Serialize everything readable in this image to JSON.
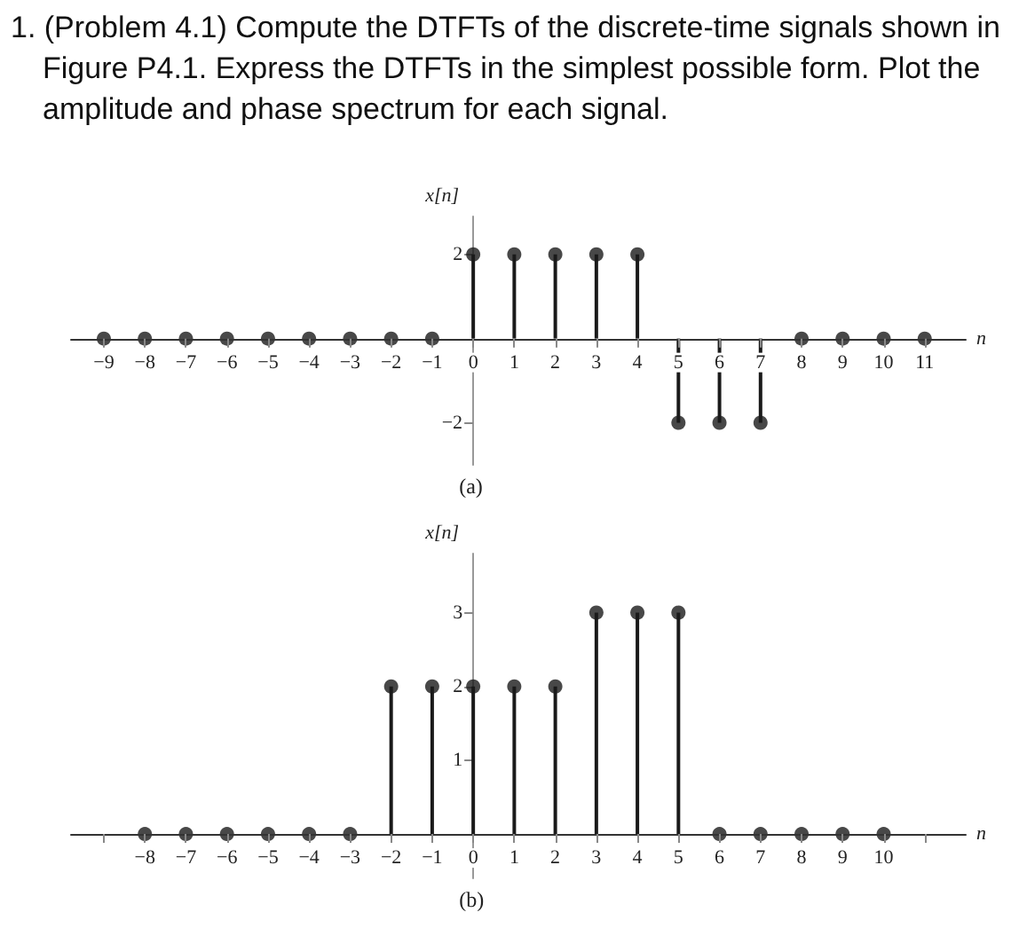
{
  "chart_data": [
    {
      "type": "lollipop",
      "title": "1. (Problem 4.1) Compute the DTFTs of the discrete-time signals shown in Figure P4.1. Express the DTFTs in the simplest possible form. Plot the amplitude and phase spectrum for each signal.",
      "xlabel": "n",
      "ylabel": "x[n]",
      "annotations": [
        "(a)"
      ],
      "color": "#1a1a1a",
      "marker": "circle",
      "grid": false,
      "x": [
        -9,
        -8,
        -7,
        -6,
        -5,
        -4,
        -3,
        -2,
        -1,
        0,
        1,
        2,
        3,
        4,
        5,
        6,
        7,
        8,
        9,
        10,
        11
      ],
      "values": [
        0,
        0,
        0,
        0,
        0,
        0,
        0,
        0,
        0,
        2,
        2,
        2,
        2,
        2,
        -2,
        -2,
        -2,
        0,
        0,
        0,
        0
      ],
      "xlim": [
        -9.8,
        12
      ],
      "xticks": [
        -9,
        -8,
        -7,
        -6,
        -5,
        -4,
        -3,
        -2,
        -1,
        0,
        1,
        2,
        3,
        4,
        5,
        6,
        7,
        8,
        9,
        10,
        11
      ],
      "ylim": [
        -3,
        2.9
      ],
      "yticks": [
        -2,
        2
      ]
    },
    {
      "type": "lollipop",
      "xlabel": "n",
      "ylabel": "x[n]",
      "annotations": [
        "(b)"
      ],
      "color": "#1a1a1a",
      "marker": "circle",
      "grid": false,
      "x": [
        -8,
        -7,
        -6,
        -5,
        -4,
        -3,
        -2,
        -1,
        0,
        1,
        2,
        3,
        4,
        5,
        6,
        7,
        8,
        9,
        10
      ],
      "values": [
        0,
        0,
        0,
        0,
        0,
        0,
        2,
        2,
        2,
        2,
        2,
        3,
        3,
        3,
        0,
        0,
        0,
        0,
        0
      ],
      "xlim": [
        -9.8,
        12
      ],
      "xticks": [
        {
          "value": -9,
          "label": null
        },
        -8,
        -7,
        -6,
        -5,
        -4,
        -3,
        -2,
        -1,
        0,
        1,
        2,
        3,
        4,
        5,
        6,
        7,
        8,
        9,
        10,
        {
          "value": 11,
          "label": null
        }
      ],
      "ylim": [
        -0.6,
        3.8
      ],
      "yticks": [
        1,
        2,
        3
      ]
    }
  ]
}
